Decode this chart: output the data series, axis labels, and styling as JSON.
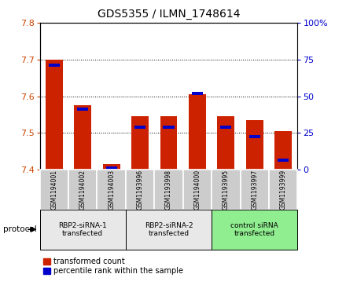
{
  "title": "GDS5355 / ILMN_1748614",
  "samples": [
    "GSM1194001",
    "GSM1194002",
    "GSM1194003",
    "GSM1193996",
    "GSM1193998",
    "GSM1194000",
    "GSM1193995",
    "GSM1193997",
    "GSM1193999"
  ],
  "red_values": [
    7.7,
    7.575,
    7.415,
    7.545,
    7.545,
    7.605,
    7.545,
    7.535,
    7.505
  ],
  "blue_values": [
    7.685,
    7.565,
    7.405,
    7.515,
    7.515,
    7.608,
    7.515,
    7.49,
    7.425
  ],
  "ylim": [
    7.4,
    7.8
  ],
  "yticks_left": [
    7.4,
    7.5,
    7.6,
    7.7,
    7.8
  ],
  "yticks_right": [
    0,
    25,
    50,
    75,
    100
  ],
  "y_right_labels": [
    "0",
    "25",
    "50",
    "75",
    "100%"
  ],
  "groups": [
    {
      "label": "RBP2-siRNA-1\ntransfected",
      "start": 0,
      "end": 3
    },
    {
      "label": "RBP2-siRNA-2\ntransfected",
      "start": 3,
      "end": 6
    },
    {
      "label": "control siRNA\ntransfected",
      "start": 6,
      "end": 9
    }
  ],
  "group_colors": [
    "#e8e8e8",
    "#e8e8e8",
    "#90ee90"
  ],
  "bar_bottom": 7.4,
  "bar_width": 0.6,
  "red_color": "#cc2200",
  "blue_color": "#0000cc",
  "bg_color": "#ffffff",
  "sample_bg": "#cccccc",
  "legend_red": "transformed count",
  "legend_blue": "percentile rank within the sample",
  "protocol_label": "protocol",
  "left_tick_color": "#cc4400",
  "right_tick_color": "#0000cc",
  "blue_bar_height": 0.008
}
